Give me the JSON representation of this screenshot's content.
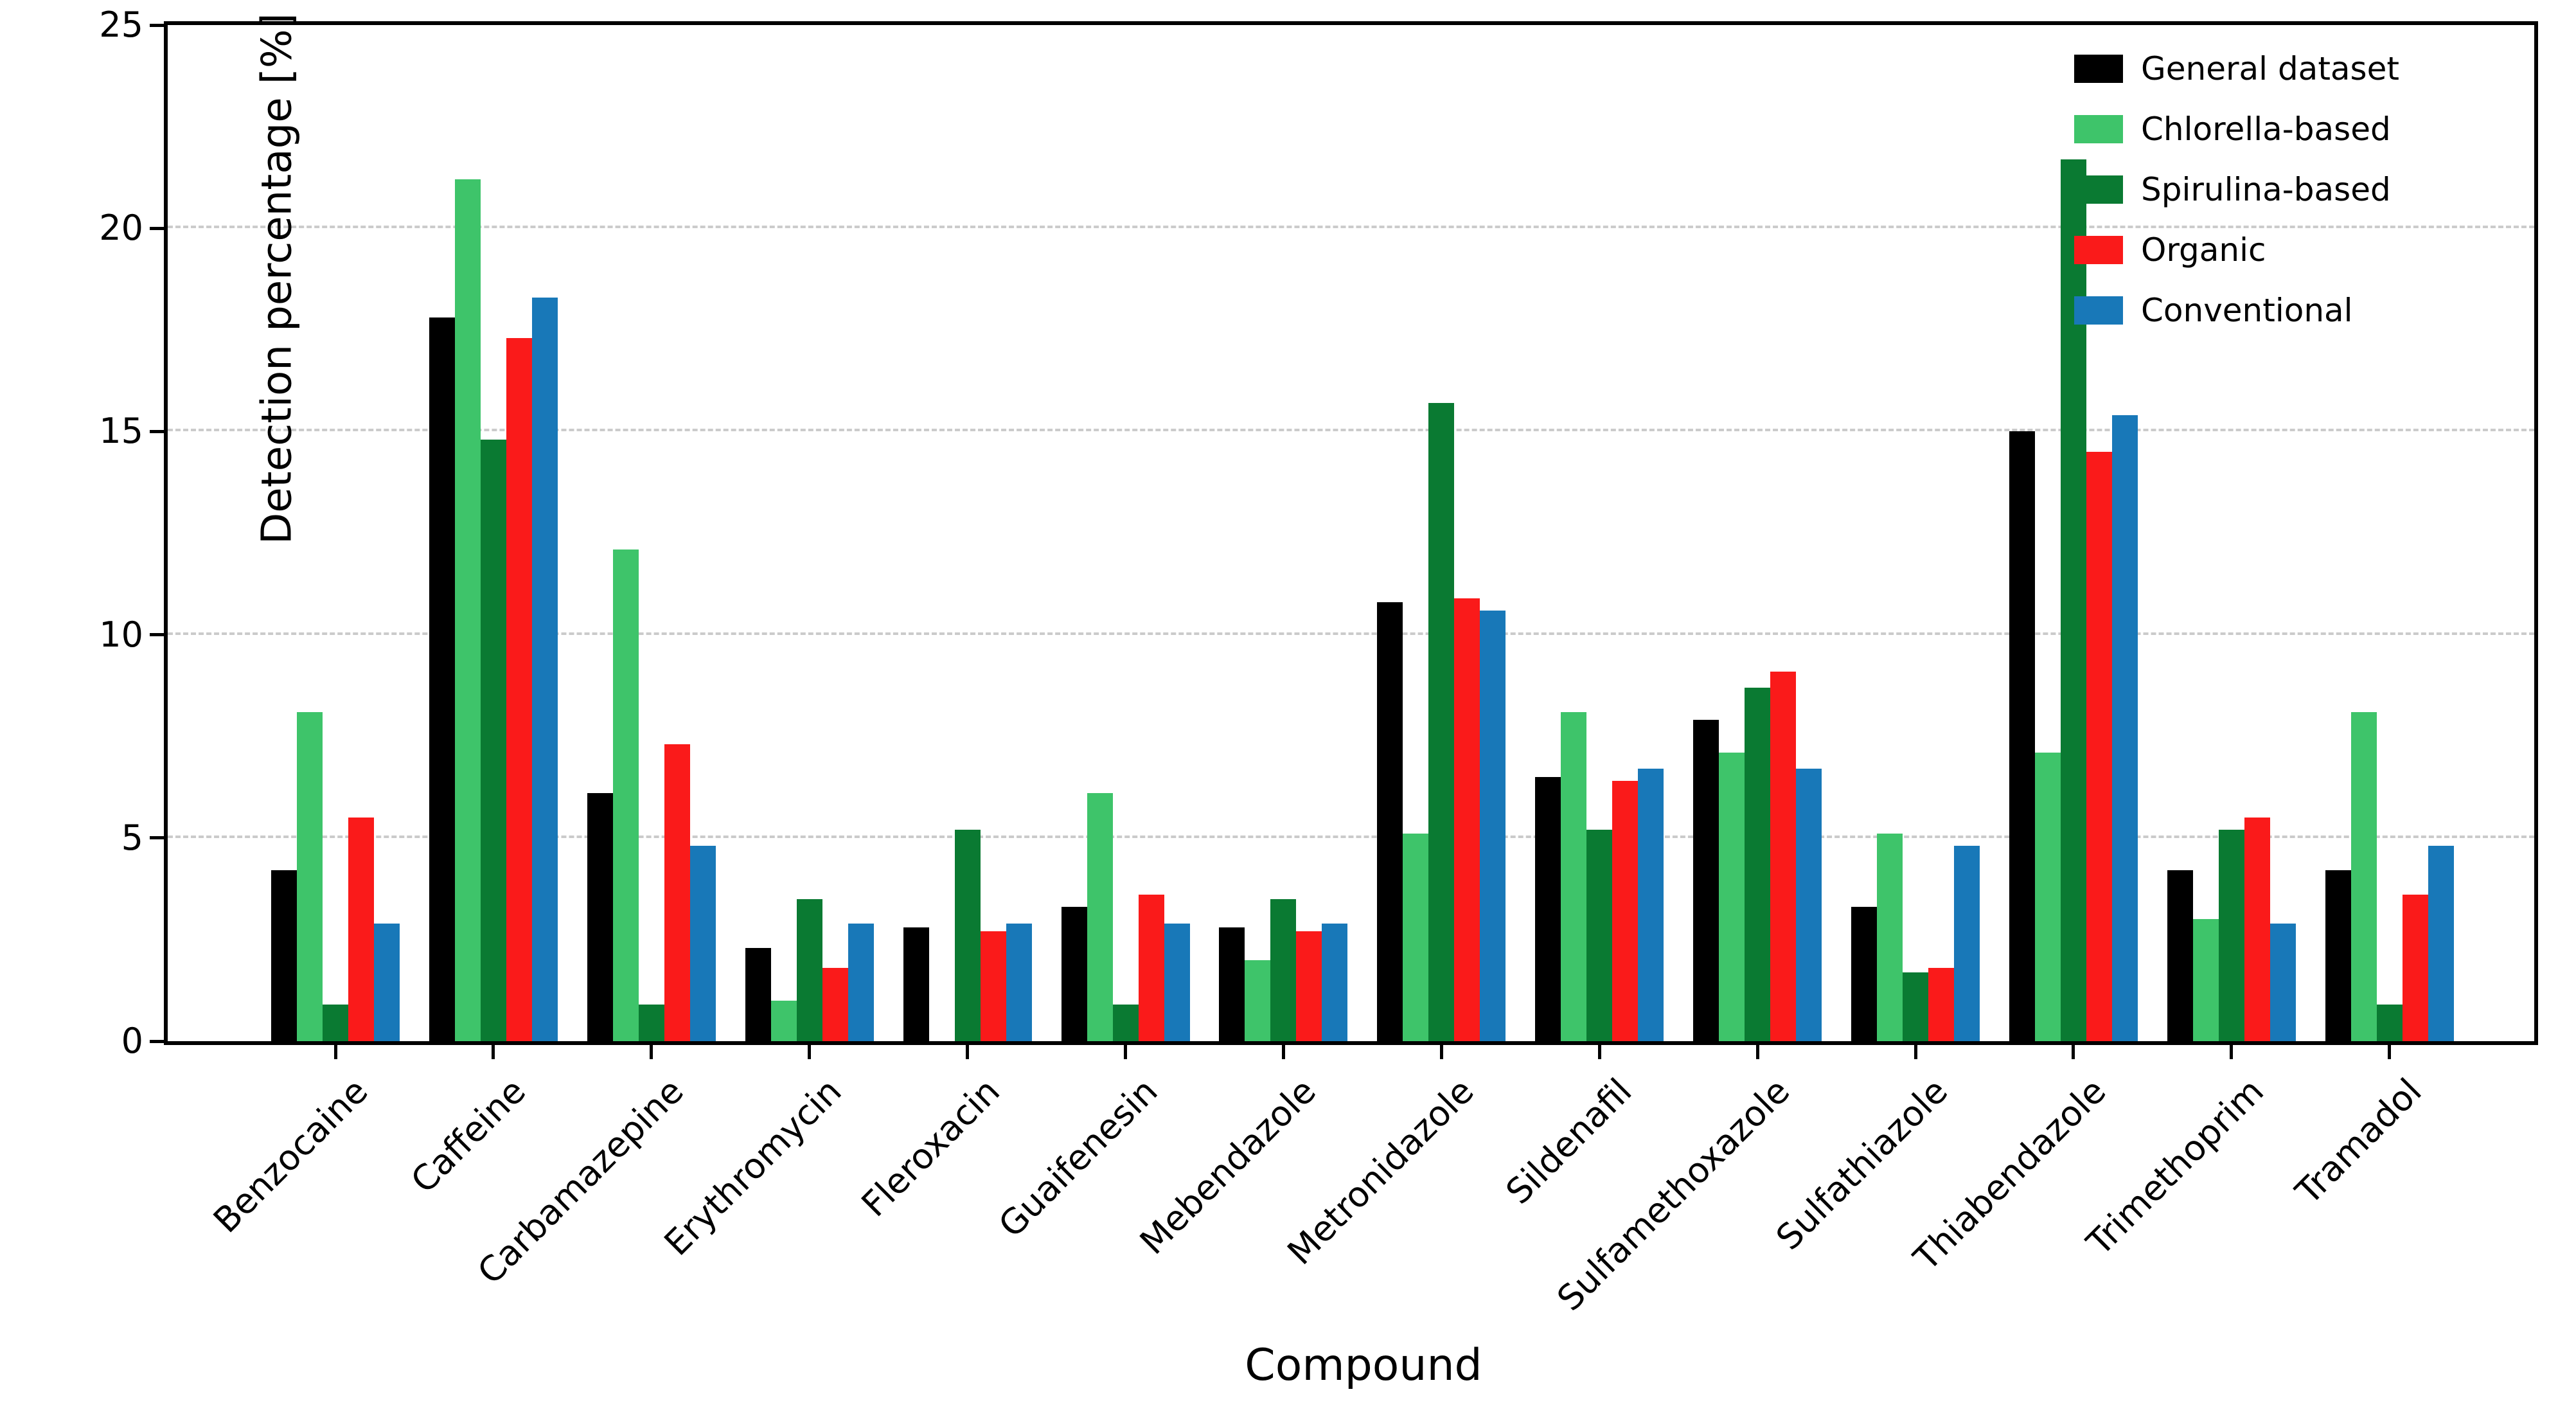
{
  "chart_data": {
    "type": "bar",
    "title": "",
    "xlabel": "Compound",
    "ylabel": "Detection percentage [%]",
    "ylim": [
      0,
      25
    ],
    "yticks": [
      0,
      5,
      10,
      15,
      20,
      25
    ],
    "gridlines_at": [
      5,
      10,
      15,
      20
    ],
    "grid_style": "horizontal dashed light gray",
    "legend_position": "upper right inside plot, no frame",
    "categories": [
      "Benzocaine",
      "Caffeine",
      "Carbamazepine",
      "Erythromycin",
      "Fleroxacin",
      "Guaifenesin",
      "Mebendazole",
      "Metronidazole",
      "Sildenafil",
      "Sulfamethoxazole",
      "Sulfathiazole",
      "Thiabendazole",
      "Trimethoprim",
      "Tramadol"
    ],
    "series": [
      {
        "name": "General dataset",
        "color": "#000000",
        "values": [
          4.2,
          17.8,
          6.1,
          2.3,
          2.8,
          3.3,
          2.8,
          10.8,
          6.5,
          7.9,
          3.3,
          15.0,
          4.2,
          4.2
        ]
      },
      {
        "name": "Chlorella-based",
        "color": "#3ec46a",
        "values": [
          8.1,
          21.2,
          12.1,
          1.0,
          0,
          6.1,
          2.0,
          5.1,
          8.1,
          7.1,
          5.1,
          7.1,
          3.0,
          8.1
        ]
      },
      {
        "name": "Spirulina-based",
        "color": "#0a7a32",
        "values": [
          0.9,
          14.8,
          0.9,
          3.5,
          5.2,
          0.9,
          3.5,
          15.7,
          5.2,
          8.7,
          1.7,
          21.7,
          5.2,
          0.9
        ]
      },
      {
        "name": "Organic",
        "color": "#fa1a1a",
        "values": [
          5.5,
          17.3,
          7.3,
          1.8,
          2.7,
          3.6,
          2.7,
          10.9,
          6.4,
          9.1,
          1.8,
          14.5,
          5.5,
          3.6
        ]
      },
      {
        "name": "Conventional",
        "color": "#1878b8",
        "values": [
          2.9,
          18.3,
          4.8,
          2.9,
          2.9,
          2.9,
          2.9,
          10.6,
          6.7,
          6.7,
          4.8,
          15.4,
          2.9,
          4.8
        ]
      }
    ]
  }
}
